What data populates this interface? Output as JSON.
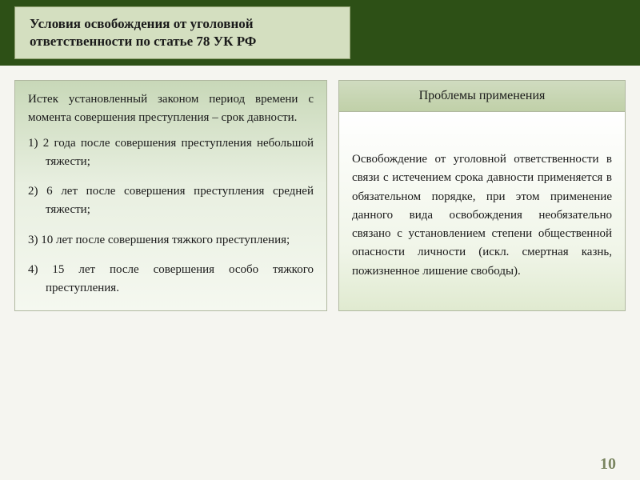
{
  "header": {
    "title_line1": "Условия освобождения от уголовной",
    "title_line2": "ответственности по статье 78 УК РФ"
  },
  "left": {
    "intro": "Истек установленный законом период времени с момента совершения преступления – срок давности.",
    "items": [
      "1) 2 года после совершения преступления небольшой тяжести;",
      "2) 6 лет после совершения преступления средней тяжести;",
      "3) 10 лет после совершения тяжкого преступления;",
      "4) 15 лет после совершения особо тяжкого преступления."
    ]
  },
  "right": {
    "header": "Проблемы применения",
    "body": "Освобождение от уголовной ответственности в связи с истечением срока давности применяется в обязательном порядке, при этом применение данного вида освобождения необязательно связано с установлением степени общественной опасности личности (искл. смертная казнь, пожизненное лишение свободы)."
  },
  "page_number": "10",
  "colors": {
    "header_bar": "#2d5016",
    "title_box_bg": "#d4dfc0",
    "panel_border": "#b0b8a0",
    "text": "#1a1a1a",
    "page_num": "#7a8560"
  }
}
